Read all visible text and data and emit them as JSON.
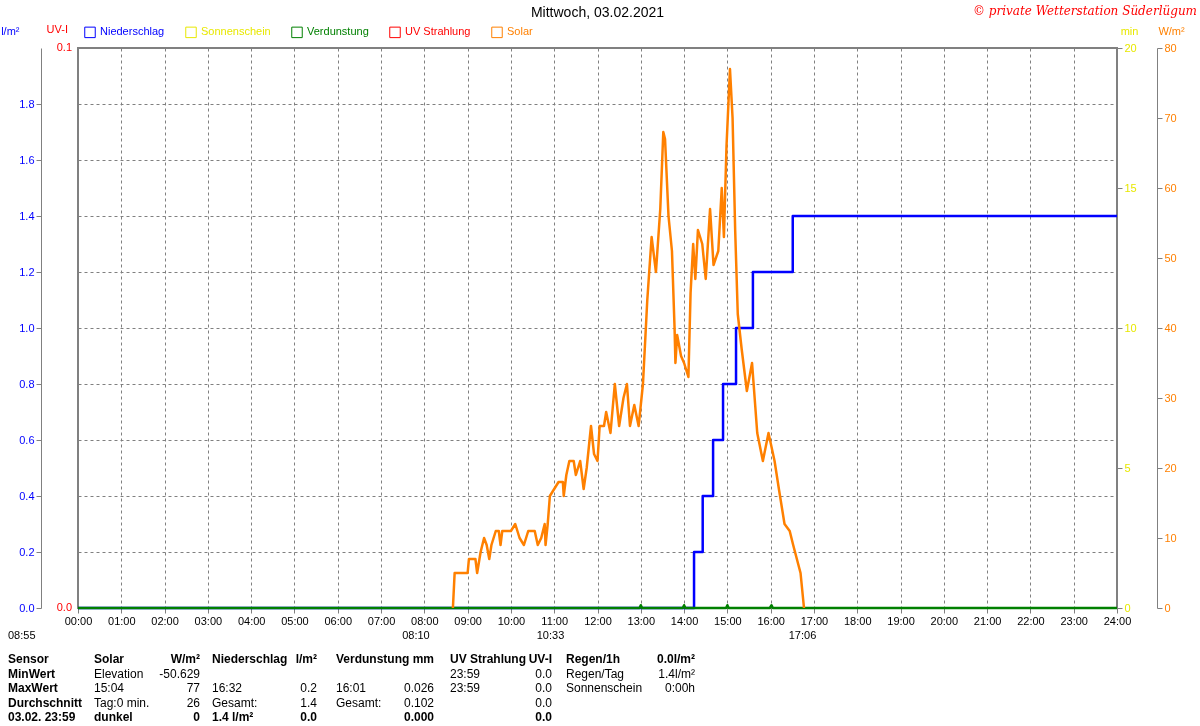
{
  "chart_data": [
    {
      "type": "line",
      "title": "Mittwoch, 03.02.2021",
      "xlim": [
        0,
        24
      ],
      "xticks": [
        {
          "value": 0,
          "label": "00:00"
        },
        {
          "value": 1,
          "label": "01:00"
        },
        {
          "value": 2,
          "label": "02:00"
        },
        {
          "value": 3,
          "label": "03:00"
        },
        {
          "value": 4,
          "label": "04:00"
        },
        {
          "value": 5,
          "label": "05:00"
        },
        {
          "value": 6,
          "label": "06:00"
        },
        {
          "value": 7,
          "label": "07:00"
        },
        {
          "value": 8,
          "label": "08:00"
        },
        {
          "value": 9,
          "label": "09:00"
        },
        {
          "value": 10,
          "label": "10:00"
        },
        {
          "value": 11,
          "label": "11:00"
        },
        {
          "value": 12,
          "label": "12:00"
        },
        {
          "value": 13,
          "label": "13:00"
        },
        {
          "value": 14,
          "label": "14:00"
        },
        {
          "value": 15,
          "label": "15:00"
        },
        {
          "value": 16,
          "label": "16:00"
        },
        {
          "value": 17,
          "label": "17:00"
        },
        {
          "value": 18,
          "label": "18:00"
        },
        {
          "value": 19,
          "label": "19:00"
        },
        {
          "value": 20,
          "label": "20:00"
        },
        {
          "value": 21,
          "label": "21:00"
        },
        {
          "value": 22,
          "label": "22:00"
        },
        {
          "value": 23,
          "label": "23:00"
        },
        {
          "value": 24,
          "label": "24:00"
        }
      ],
      "ylabel": "l/m²",
      "ylim": [
        0,
        2
      ],
      "yticks": [
        {
          "value": 0,
          "label": "0.0"
        },
        0.2,
        0.4,
        0.6,
        0.8,
        {
          "value": 1,
          "label": "1.0"
        },
        1.2,
        1.4,
        1.6,
        1.8
      ],
      "y2label": "W/m²",
      "y2lim": [
        0,
        80
      ],
      "y2ticks": [
        0,
        10,
        20,
        30,
        40,
        50,
        60,
        70,
        80
      ],
      "y3label": "min",
      "y3lim": [
        0,
        20
      ],
      "y3ticks": [
        0,
        5,
        10,
        15,
        20
      ],
      "grid": true,
      "legend": "top left",
      "line_style": "solid",
      "annotations": [
        "© private Wetterstation Süderlügum",
        "08:55",
        "08:10",
        "10:33",
        "17:06",
        "UV-I",
        "0.1",
        "0.0"
      ],
      "series": [
        {
          "name": "Niederschlag",
          "color": "#0000ff",
          "type": "step",
          "axis": "y",
          "x": [
            0,
            14.23,
            14.43,
            14.67,
            14.9,
            15.2,
            15.59,
            16.51,
            24
          ],
          "values": [
            0,
            0.2,
            0.4,
            0.6,
            0.8,
            1.0,
            1.2,
            1.4,
            1.4
          ]
        },
        {
          "name": "Sonnenschein",
          "color": "#e8e800",
          "axis": "y3"
        },
        {
          "name": "Verdunstung",
          "color": "#008000",
          "axis": "y",
          "x": [
            0,
            12.97,
            13,
            13.03,
            13.97,
            14,
            14.03,
            14.97,
            15,
            15.03,
            15.98,
            16.02,
            16.05,
            24
          ],
          "values": [
            0,
            0,
            0.01,
            0,
            0,
            0.01,
            0,
            0,
            0.01,
            0,
            0,
            0.01,
            0,
            0
          ]
        },
        {
          "name": "UV Strahlung",
          "color": "#ff0000",
          "axis": "y"
        },
        {
          "name": "Solar",
          "color": "#ff8000",
          "axis": "y2",
          "x": [
            8.66,
            8.7,
            9.0,
            9.03,
            9.18,
            9.22,
            9.3,
            9.38,
            9.44,
            9.5,
            9.55,
            9.65,
            9.72,
            9.76,
            9.8,
            10.0,
            10.1,
            10.2,
            10.3,
            10.4,
            10.55,
            10.62,
            10.7,
            10.78,
            10.8,
            10.85,
            10.9,
            11.0,
            11.1,
            11.2,
            11.22,
            11.28,
            11.35,
            11.45,
            11.5,
            11.6,
            11.68,
            11.75,
            11.85,
            11.92,
            12.0,
            12.05,
            12.15,
            12.2,
            12.3,
            12.4,
            12.5,
            12.6,
            12.68,
            12.75,
            12.85,
            12.95,
            13.05,
            13.15,
            13.25,
            13.35,
            13.45,
            13.52,
            13.56,
            13.64,
            13.72,
            13.78,
            13.8,
            13.84,
            13.93,
            14.0,
            14.1,
            14.15,
            14.21,
            14.26,
            14.32,
            14.42,
            14.5,
            14.6,
            14.68,
            14.79,
            14.87,
            14.92,
            14.98,
            15.06,
            15.12,
            15.18,
            15.24,
            15.33,
            15.45,
            15.57,
            15.69,
            15.82,
            15.95,
            16.09,
            16.19,
            16.32,
            16.44,
            16.52,
            16.69,
            16.77
          ],
          "values": [
            0,
            5,
            5,
            7,
            7,
            5,
            8,
            10,
            9,
            7,
            9,
            11,
            11,
            9,
            11,
            11,
            12,
            10,
            9,
            11,
            11,
            9,
            10,
            12,
            9,
            12,
            16,
            17,
            18,
            18,
            16,
            19,
            21,
            21,
            19,
            21,
            17,
            20,
            26,
            22,
            21,
            26,
            26,
            28,
            25,
            32,
            26,
            30,
            32,
            26,
            29,
            26,
            32,
            44,
            53,
            48,
            57,
            68,
            67,
            56,
            51,
            40,
            35,
            39,
            36,
            35,
            33,
            45,
            52,
            47,
            54,
            52,
            47,
            57,
            49,
            51,
            60,
            53,
            66,
            77,
            70,
            54,
            42,
            37,
            31,
            35,
            25,
            21,
            25,
            21,
            17,
            12,
            11,
            9,
            5,
            0
          ]
        }
      ]
    },
    {
      "type": "other",
      "annotations": [
        "Sensor",
        "Solar",
        "W/m²",
        "Niederschlag",
        "l/m²",
        "Verdunstung",
        "mm",
        "UV Strahlung",
        "UV-I",
        "Regen/1h",
        "0.0l/m²",
        "MinWert",
        "Elevation",
        "-50.629",
        "23:59",
        "0.0",
        "Regen/Tag",
        "1.4l/m²",
        "MaxWert",
        "15:04",
        "77",
        "16:32",
        "0.2",
        "16:01",
        "0.026",
        "23:59",
        "0.0",
        "Sonnenschein",
        "0:00h",
        "Durchschnitt",
        "Tag:0 min.",
        "26",
        "Gesamt:",
        "1.4",
        "Gesamt:",
        "0.102",
        "0.0",
        "03.02.  23:59",
        "dunkel",
        "0",
        "1.4 l/m²",
        "0.0",
        "0.000",
        "0.0"
      ]
    }
  ]
}
